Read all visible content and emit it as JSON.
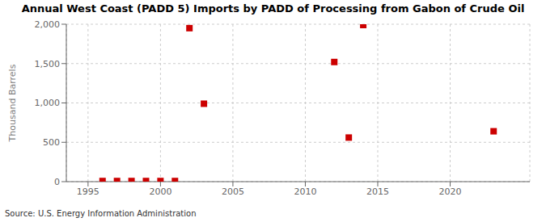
{
  "chart_data": {
    "type": "scatter",
    "title": "Annual West Coast (PADD 5) Imports by PADD of Processing from Gabon of Crude Oil",
    "ylabel": "Thousand Barrels",
    "source": "Source: U.S. Energy Information Administration",
    "x": [
      1996,
      1997,
      1998,
      1999,
      2000,
      2001,
      2002,
      2003,
      2012,
      2013,
      2014,
      2023
    ],
    "values": [
      8,
      8,
      8,
      8,
      8,
      8,
      1950,
      990,
      1520,
      560,
      1990,
      640
    ],
    "color": "#cc0000",
    "marker": "square",
    "xlim": [
      1993.5,
      2025.5
    ],
    "ylim": [
      0,
      2000
    ],
    "xticks": [
      1995,
      2000,
      2005,
      2010,
      2015,
      2020
    ],
    "yticks": [
      0,
      500,
      {
        "value": 1000,
        "label": "1,000"
      },
      {
        "value": 1500,
        "label": "1,500"
      },
      {
        "value": 2000,
        "label": "2,000"
      }
    ],
    "grid": true
  }
}
